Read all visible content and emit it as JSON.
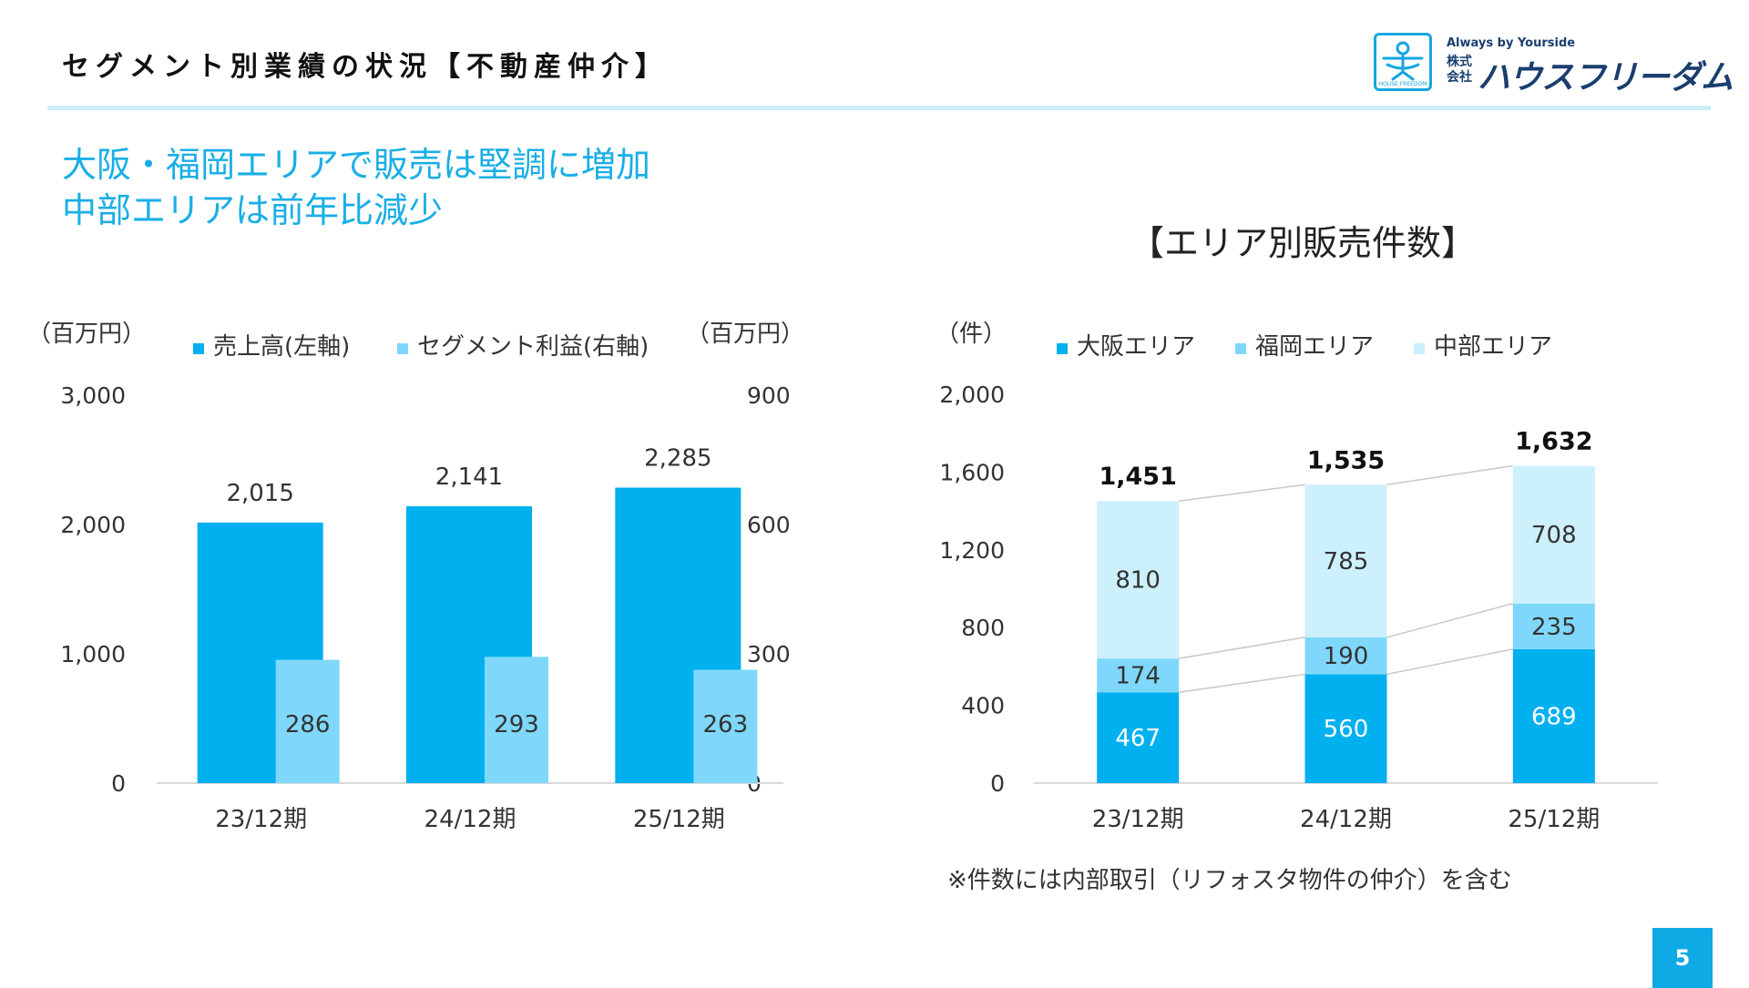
{
  "header": {
    "title": "セグメント別業績の状況【不動産仲介】",
    "logo": {
      "tagline": "Always by Yourside",
      "kaisha": "株式会社",
      "name": "ハウスフリーダム",
      "mark_text": "HOUSE FREEDOM",
      "accent_color": "#14a6df",
      "text_color": "#1a3f6e"
    }
  },
  "headline": {
    "line1": "大阪・福岡エリアで販売は堅調に増加",
    "line2": "中部エリアは前年比減少"
  },
  "right_chart_title": "【エリア別販売件数】",
  "note": "※件数には内部取引（リフォスタ物件の仲介）を含む",
  "page_number": "5",
  "chart_data": [
    {
      "type": "bar",
      "categories": [
        "23/12期",
        "24/12期",
        "25/12期"
      ],
      "series": [
        {
          "name": "売上高(左軸)",
          "axis": "left",
          "values": [
            2015,
            2141,
            2285
          ],
          "color": "#00b0ef",
          "labels": [
            "2,015",
            "2,141",
            "2,285"
          ]
        },
        {
          "name": "セグメント利益(右軸)",
          "axis": "right",
          "values": [
            286,
            293,
            263
          ],
          "color": "#7fd8fb",
          "labels": [
            "286",
            "293",
            "263"
          ]
        }
      ],
      "y_left": {
        "unit": "（百万円）",
        "range": [
          0,
          3000
        ],
        "ticks": [
          "0",
          "1,000",
          "2,000",
          "3,000"
        ]
      },
      "y_right": {
        "unit": "（百万円）",
        "range": [
          0,
          900
        ],
        "ticks": [
          "0",
          "300",
          "600",
          "900"
        ]
      },
      "legend": "top",
      "grid": false
    },
    {
      "type": "bar",
      "stacked": true,
      "categories": [
        "23/12期",
        "24/12期",
        "25/12期"
      ],
      "series": [
        {
          "name": "大阪エリア",
          "values": [
            467,
            560,
            689
          ],
          "color": "#00b0ef",
          "labels": [
            "467",
            "560",
            "689"
          ]
        },
        {
          "name": "福岡エリア",
          "values": [
            174,
            190,
            235
          ],
          "color": "#7fd8fb",
          "labels": [
            "174",
            "190",
            "235"
          ]
        },
        {
          "name": "中部エリア",
          "values": [
            810,
            785,
            708
          ],
          "color": "#cdf0fd",
          "labels": [
            "810",
            "785",
            "708"
          ]
        }
      ],
      "totals": [
        "1,451",
        "1,535",
        "1,632"
      ],
      "y": {
        "unit": "（件）",
        "range": [
          0,
          2000
        ],
        "ticks": [
          "0",
          "400",
          "800",
          "1,200",
          "1,600",
          "2,000"
        ]
      },
      "legend": "top",
      "grid": false
    }
  ]
}
